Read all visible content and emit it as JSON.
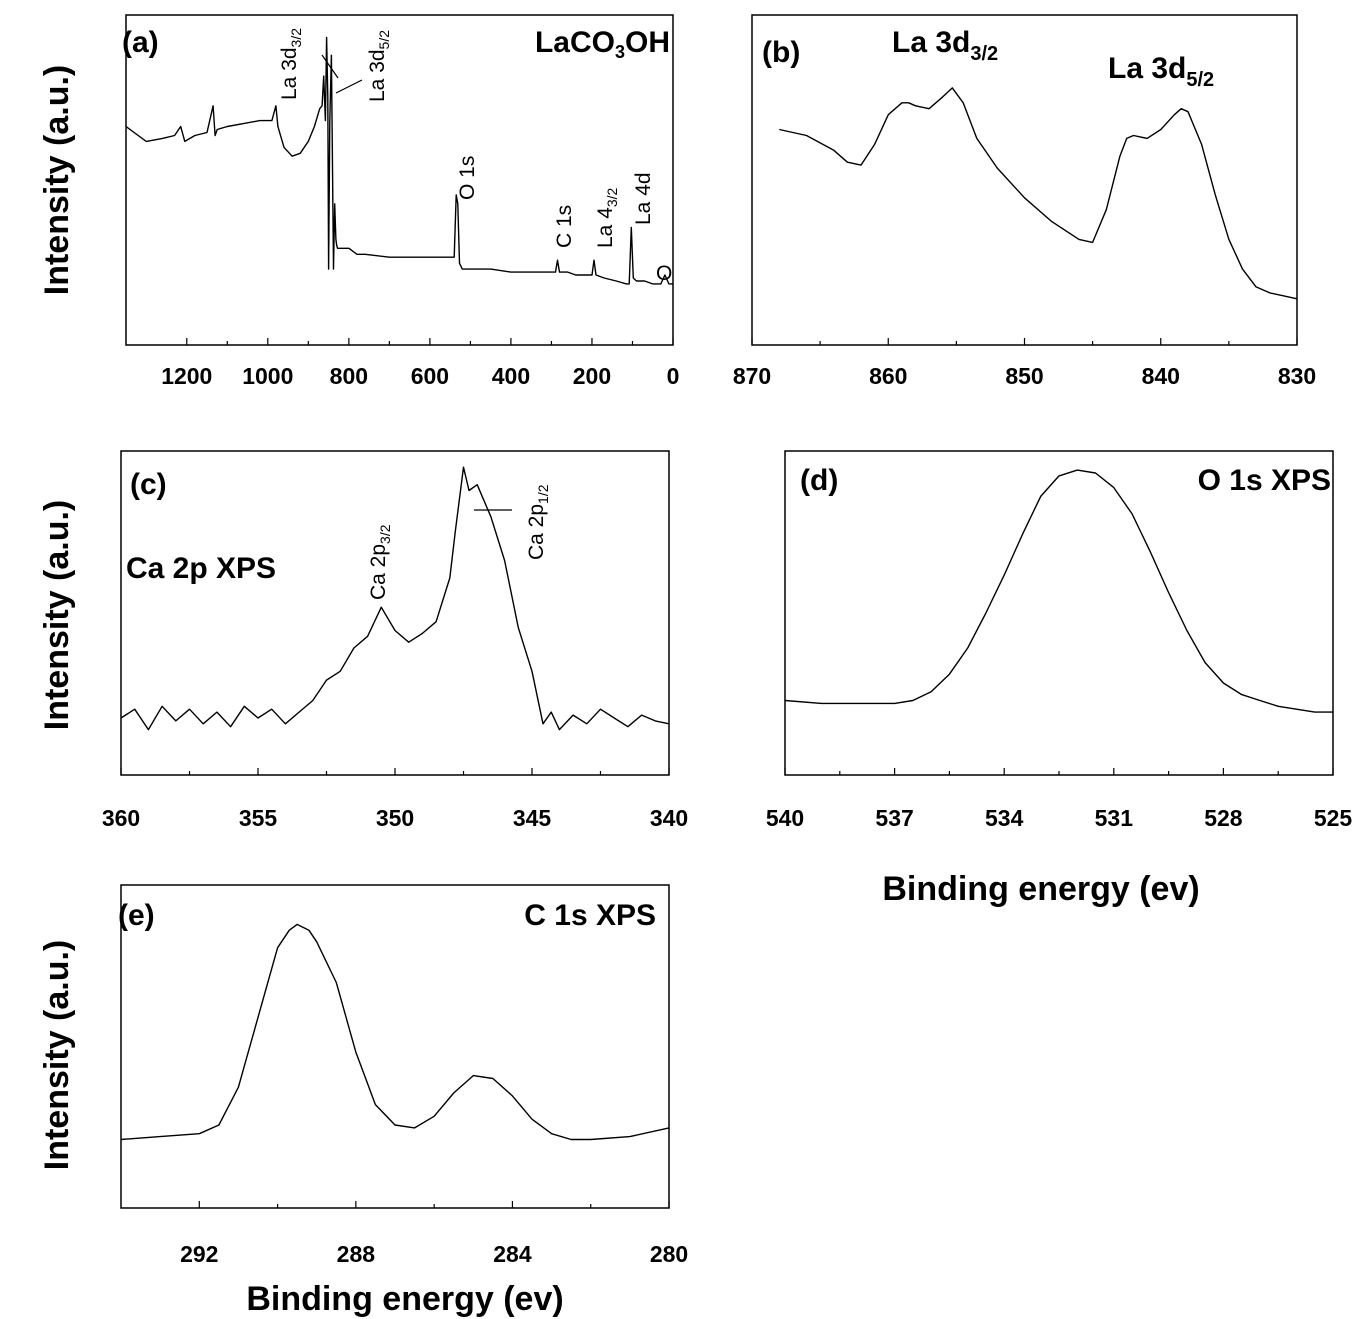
{
  "axis_titles": {
    "y_label": "Intensity (a.u.)",
    "x_label": "Binding energy (ev)"
  },
  "chart_data": [
    {
      "id": "a",
      "type": "line",
      "panel_label": "(a)",
      "title": "LaCO3OH",
      "xlim": [
        1350,
        0
      ],
      "ylim": [
        0,
        100
      ],
      "xticks": [
        1200,
        1000,
        800,
        600,
        400,
        200,
        0
      ],
      "annotations": [
        {
          "text": "La 3d3/2",
          "x": 855
        },
        {
          "text": "La 3d5/2",
          "x": 835
        },
        {
          "text": "O 1s",
          "x": 531
        },
        {
          "text": "C 1s",
          "x": 285
        },
        {
          "text": "La 4d3/2",
          "x": 195
        },
        {
          "text": "La 4d",
          "x": 103
        },
        {
          "text": "O",
          "x": 20
        }
      ],
      "series": [
        {
          "x": [
            1350,
            1330,
            1300,
            1260,
            1230,
            1215,
            1205,
            1180,
            1150,
            1135,
            1130,
            1125,
            1100,
            1060,
            1020,
            990,
            980,
            975,
            960,
            940,
            920,
            900,
            885,
            872,
            866,
            862,
            858,
            855,
            852,
            850,
            847,
            843,
            838,
            835,
            832,
            830,
            828,
            800,
            780,
            760,
            700,
            650,
            600,
            560,
            540,
            535,
            531,
            527,
            520,
            500,
            450,
            400,
            350,
            300,
            290,
            285,
            280,
            260,
            240,
            220,
            200,
            195,
            190,
            170,
            140,
            115,
            108,
            103,
            98,
            90,
            70,
            50,
            40,
            30,
            20,
            10,
            0
          ],
          "y": [
            68,
            66,
            63,
            64,
            65,
            68,
            63,
            65,
            66,
            75,
            65,
            67,
            68,
            69,
            70,
            70,
            75,
            68,
            61,
            58,
            59,
            63,
            68,
            74,
            75,
            85,
            70,
            98,
            78,
            20,
            70,
            92,
            20,
            42,
            30,
            28,
            27,
            27,
            25,
            25,
            24,
            24,
            24,
            24,
            24,
            45,
            42,
            22,
            20,
            20,
            20,
            19,
            19,
            19,
            19,
            23,
            19,
            19,
            18,
            18,
            18,
            23,
            18,
            17,
            16,
            15,
            15,
            34,
            17,
            16,
            16,
            15,
            15,
            15,
            18,
            15,
            15
          ]
        }
      ]
    },
    {
      "id": "b",
      "type": "line",
      "panel_label": "(b)",
      "title": "",
      "xlim": [
        870,
        830
      ],
      "ylim": [
        0,
        100
      ],
      "xticks": [
        870,
        860,
        850,
        840,
        830
      ],
      "annotations": [
        {
          "text": "La 3d3/2",
          "x": 855
        },
        {
          "text": "La 3d5/2",
          "x": 838
        }
      ],
      "series": [
        {
          "x": [
            868,
            866,
            864,
            863,
            862,
            861,
            860,
            859,
            858.5,
            858,
            857,
            856,
            855.3,
            854.5,
            853.5,
            852,
            850,
            848,
            846,
            845,
            844,
            843,
            842.5,
            842,
            841,
            840,
            839,
            838.5,
            838,
            837,
            836,
            835,
            834,
            833,
            832,
            831,
            830
          ],
          "y": [
            67,
            65,
            60,
            56,
            55,
            62,
            72,
            76,
            76,
            75,
            74,
            78,
            81,
            76,
            64,
            54,
            44,
            36,
            30,
            29,
            40,
            58,
            64,
            65,
            64,
            67,
            72,
            74,
            73,
            62,
            45,
            30,
            20,
            14,
            12,
            11,
            10
          ]
        }
      ]
    },
    {
      "id": "c",
      "type": "line",
      "panel_label": "(c)",
      "title": "Ca 2p XPS",
      "xlim": [
        360,
        340
      ],
      "ylim": [
        0,
        100
      ],
      "xticks": [
        360,
        355,
        350,
        345,
        340
      ],
      "annotations": [
        {
          "text": "Ca 2p3/2",
          "x": 350.5
        },
        {
          "text": "Ca 2p1/2",
          "x": 347
        }
      ],
      "series": [
        {
          "x": [
            360,
            359.5,
            359,
            358.5,
            358,
            357.5,
            357,
            356.5,
            356,
            355.5,
            355,
            354.5,
            354,
            353.5,
            353,
            352.5,
            352,
            351.5,
            351,
            350.5,
            350,
            349.5,
            349,
            348.5,
            348,
            347.8,
            347.5,
            347.3,
            347,
            346.5,
            346,
            345.5,
            345,
            344.6,
            344.3,
            344,
            343.5,
            343,
            342.5,
            342,
            341.5,
            341,
            340.5,
            340
          ],
          "y": [
            14,
            17,
            10,
            18,
            13,
            17,
            12,
            16,
            11,
            18,
            14,
            17,
            12,
            16,
            20,
            27,
            30,
            38,
            42,
            52,
            44,
            40,
            43,
            47,
            62,
            78,
            100,
            92,
            94,
            83,
            68,
            45,
            30,
            12,
            16,
            10,
            15,
            12,
            17,
            14,
            11,
            15,
            13,
            12
          ]
        }
      ]
    },
    {
      "id": "d",
      "type": "line",
      "panel_label": "(d)",
      "title": "O 1s XPS",
      "xlim": [
        540,
        525
      ],
      "ylim": [
        0,
        100
      ],
      "xticks": [
        540,
        537,
        534,
        531,
        528,
        525
      ],
      "series": [
        {
          "x": [
            540,
            539,
            538,
            537,
            536.5,
            536,
            535.5,
            535,
            534.5,
            534,
            533.5,
            533,
            532.5,
            532,
            531.5,
            531,
            530.5,
            530,
            529.5,
            529,
            528.5,
            528,
            527.5,
            527,
            526.5,
            526,
            525.5,
            525
          ],
          "y": [
            20,
            19,
            19,
            19,
            20,
            23,
            29,
            38,
            50,
            63,
            77,
            90,
            97,
            99,
            98,
            93,
            84,
            71,
            57,
            44,
            33,
            26,
            22,
            20,
            18,
            17,
            16,
            16
          ]
        }
      ]
    },
    {
      "id": "e",
      "type": "line",
      "panel_label": "(e)",
      "title": "C 1s XPS",
      "xlim": [
        294,
        280
      ],
      "ylim": [
        0,
        100
      ],
      "xticks": [
        292,
        288,
        284,
        280
      ],
      "series": [
        {
          "x": [
            294,
            293,
            292,
            291.5,
            291,
            290.5,
            290,
            289.7,
            289.5,
            289.2,
            289,
            288.5,
            288,
            287.5,
            287,
            286.5,
            286,
            285.5,
            285,
            284.5,
            284,
            283.5,
            283,
            282.5,
            282,
            281,
            280
          ],
          "y": [
            18,
            19,
            20,
            23,
            36,
            60,
            84,
            90,
            92,
            90,
            86,
            72,
            48,
            30,
            23,
            22,
            26,
            34,
            40,
            39,
            33,
            25,
            20,
            18,
            18,
            19,
            22
          ]
        }
      ]
    }
  ]
}
